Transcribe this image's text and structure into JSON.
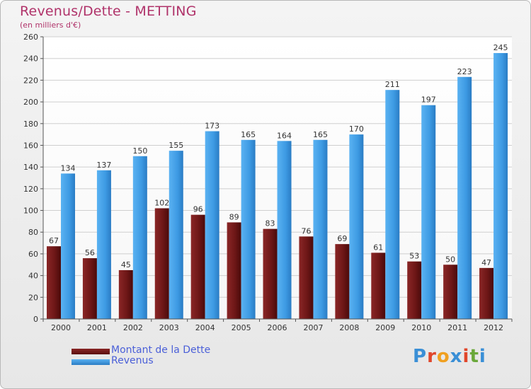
{
  "title": "Revenus/Dette - METTING",
  "subtitle": "(en milliers d'€)",
  "legend": {
    "dette": "Montant de la Dette",
    "revenus": "Revenus"
  },
  "logo": "Proxiti",
  "colors": {
    "dette": "#7a1c1c",
    "revenus": "#3d9ae3",
    "title": "#b0336a",
    "legend_text": "#4a5fd8"
  },
  "chart_data": {
    "type": "bar",
    "categories": [
      "2000",
      "2001",
      "2002",
      "2003",
      "2004",
      "2005",
      "2006",
      "2007",
      "2008",
      "2009",
      "2010",
      "2011",
      "2012"
    ],
    "series": [
      {
        "name": "Montant de la Dette",
        "values": [
          67,
          56,
          45,
          102,
          96,
          89,
          83,
          76,
          69,
          61,
          53,
          50,
          47
        ]
      },
      {
        "name": "Revenus",
        "values": [
          134,
          137,
          150,
          155,
          173,
          165,
          164,
          165,
          170,
          211,
          197,
          223,
          245
        ]
      }
    ],
    "yticks": [
      0,
      20,
      40,
      60,
      80,
      100,
      120,
      140,
      160,
      180,
      200,
      220,
      240,
      260
    ],
    "ylim": [
      0,
      260
    ],
    "grid": true,
    "legend_position": "bottom-left"
  }
}
